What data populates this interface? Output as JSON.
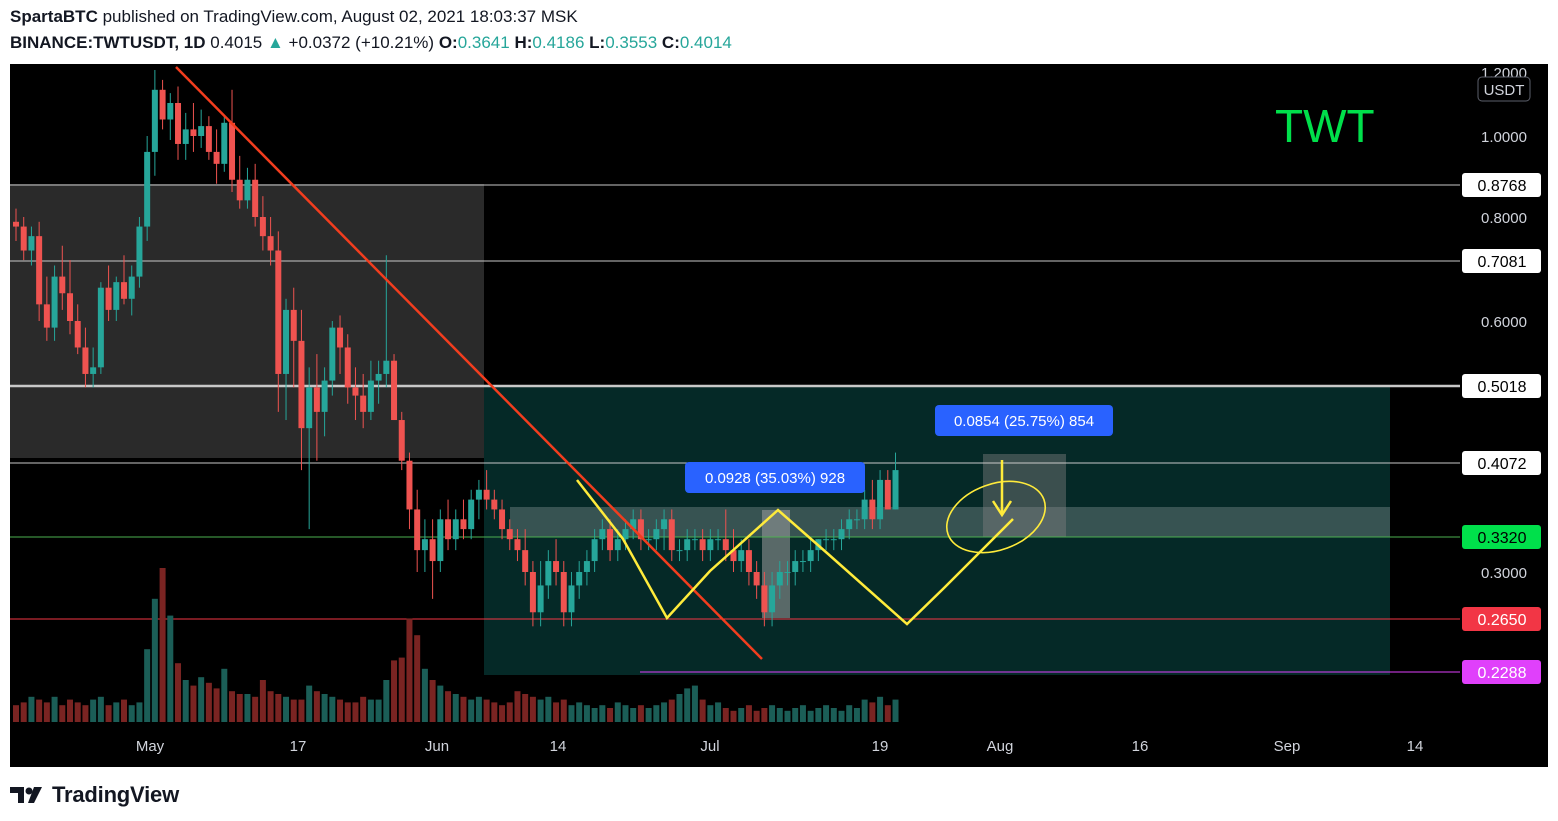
{
  "header": {
    "publisher": "SpartaBTC",
    "published_text": "published on TradingView.com, August 02, 2021 18:03:37 MSK",
    "symbol": "BINANCE:TWTUSDT, 1D",
    "last": "0.4015",
    "change": "+0.0372 (+10.21%)",
    "o_label": "O:",
    "o_value": "0.3641",
    "h_label": "H:",
    "h_value": "0.4186",
    "l_label": "L:",
    "l_value": "0.3553",
    "c_label": "C:",
    "c_value": "0.4014"
  },
  "footer": {
    "brand": "TradingView"
  },
  "colors": {
    "up": "#26a69a",
    "down": "#ef5350",
    "trendline": "#f23d1e",
    "pattern": "#ffeb3b",
    "support_green": "#4caf50",
    "resistance_red": "#f23645",
    "magenta": "#e040fb",
    "measure_box": "#2962ff",
    "title_green": "#00e04b"
  },
  "chart_data": {
    "type": "candlestick",
    "title": "TWT",
    "currency_label": "USDT",
    "y_ticks": [
      "1.2000",
      "1.0000",
      "0.8000",
      "0.6000",
      "0.3000"
    ],
    "x_ticks": [
      "May",
      "17",
      "Jun",
      "14",
      "Jul",
      "19",
      "Aug",
      "16",
      "Sep",
      "14"
    ],
    "price_levels": [
      {
        "value": "0.8768",
        "style": "white"
      },
      {
        "value": "0.7081",
        "style": "white"
      },
      {
        "value": "0.5018",
        "style": "white"
      },
      {
        "value": "0.4072",
        "style": "white"
      },
      {
        "value": "0.3320",
        "style": "green"
      },
      {
        "value": "0.2650",
        "style": "red"
      },
      {
        "value": "0.2288",
        "style": "magenta"
      }
    ],
    "measurements": [
      {
        "label": "0.0928 (35.03%) 928"
      },
      {
        "label": "0.0854 (25.75%) 854"
      }
    ],
    "candles": [
      [
        0.79,
        0.82,
        0.75,
        0.78
      ],
      [
        0.78,
        0.8,
        0.71,
        0.73
      ],
      [
        0.73,
        0.78,
        0.7,
        0.76
      ],
      [
        0.76,
        0.79,
        0.6,
        0.63
      ],
      [
        0.63,
        0.68,
        0.57,
        0.59
      ],
      [
        0.59,
        0.7,
        0.57,
        0.68
      ],
      [
        0.68,
        0.74,
        0.62,
        0.65
      ],
      [
        0.65,
        0.71,
        0.58,
        0.6
      ],
      [
        0.6,
        0.63,
        0.55,
        0.56
      ],
      [
        0.56,
        0.59,
        0.5,
        0.52
      ],
      [
        0.52,
        0.56,
        0.5,
        0.53
      ],
      [
        0.53,
        0.67,
        0.52,
        0.66
      ],
      [
        0.66,
        0.7,
        0.6,
        0.62
      ],
      [
        0.62,
        0.68,
        0.6,
        0.67
      ],
      [
        0.67,
        0.72,
        0.63,
        0.64
      ],
      [
        0.64,
        0.7,
        0.61,
        0.68
      ],
      [
        0.68,
        0.8,
        0.66,
        0.78
      ],
      [
        0.78,
        1.0,
        0.75,
        0.96
      ],
      [
        0.96,
        1.2,
        0.9,
        1.14
      ],
      [
        1.14,
        1.17,
        1.02,
        1.05
      ],
      [
        1.05,
        1.13,
        0.99,
        1.1
      ],
      [
        1.1,
        1.15,
        0.94,
        0.98
      ],
      [
        0.98,
        1.07,
        0.94,
        1.02
      ],
      [
        1.02,
        1.1,
        0.96,
        1.0
      ],
      [
        1.0,
        1.08,
        0.97,
        1.03
      ],
      [
        1.03,
        1.06,
        0.94,
        0.96
      ],
      [
        0.96,
        1.02,
        0.88,
        0.93
      ],
      [
        0.93,
        1.06,
        0.91,
        1.04
      ],
      [
        1.04,
        1.14,
        0.86,
        0.89
      ],
      [
        0.89,
        0.95,
        0.82,
        0.84
      ],
      [
        0.84,
        0.92,
        0.82,
        0.89
      ],
      [
        0.89,
        0.93,
        0.78,
        0.8
      ],
      [
        0.8,
        0.85,
        0.73,
        0.76
      ],
      [
        0.76,
        0.8,
        0.7,
        0.73
      ],
      [
        0.73,
        0.77,
        0.47,
        0.52
      ],
      [
        0.52,
        0.64,
        0.46,
        0.62
      ],
      [
        0.62,
        0.66,
        0.5,
        0.57
      ],
      [
        0.57,
        0.62,
        0.4,
        0.45
      ],
      [
        0.45,
        0.53,
        0.34,
        0.5
      ],
      [
        0.5,
        0.55,
        0.41,
        0.47
      ],
      [
        0.47,
        0.53,
        0.44,
        0.51
      ],
      [
        0.51,
        0.6,
        0.49,
        0.59
      ],
      [
        0.59,
        0.61,
        0.52,
        0.56
      ],
      [
        0.56,
        0.58,
        0.48,
        0.5
      ],
      [
        0.5,
        0.53,
        0.46,
        0.49
      ],
      [
        0.49,
        0.52,
        0.45,
        0.47
      ],
      [
        0.47,
        0.54,
        0.46,
        0.51
      ],
      [
        0.51,
        0.54,
        0.48,
        0.52
      ],
      [
        0.52,
        0.72,
        0.5,
        0.54
      ],
      [
        0.54,
        0.55,
        0.46,
        0.46
      ],
      [
        0.46,
        0.47,
        0.4,
        0.41
      ],
      [
        0.41,
        0.42,
        0.34,
        0.36
      ],
      [
        0.36,
        0.38,
        0.3,
        0.32
      ],
      [
        0.32,
        0.35,
        0.3,
        0.33
      ],
      [
        0.33,
        0.35,
        0.28,
        0.31
      ],
      [
        0.31,
        0.36,
        0.3,
        0.35
      ],
      [
        0.35,
        0.37,
        0.32,
        0.33
      ],
      [
        0.33,
        0.36,
        0.32,
        0.35
      ],
      [
        0.35,
        0.37,
        0.33,
        0.34
      ],
      [
        0.34,
        0.38,
        0.33,
        0.37
      ],
      [
        0.37,
        0.39,
        0.35,
        0.38
      ],
      [
        0.38,
        0.4,
        0.36,
        0.37
      ],
      [
        0.37,
        0.38,
        0.35,
        0.36
      ],
      [
        0.36,
        0.37,
        0.33,
        0.34
      ],
      [
        0.34,
        0.35,
        0.32,
        0.33
      ],
      [
        0.33,
        0.34,
        0.31,
        0.32
      ],
      [
        0.32,
        0.34,
        0.29,
        0.3
      ],
      [
        0.3,
        0.31,
        0.26,
        0.27
      ],
      [
        0.27,
        0.31,
        0.26,
        0.29
      ],
      [
        0.29,
        0.32,
        0.28,
        0.31
      ],
      [
        0.31,
        0.33,
        0.29,
        0.3
      ],
      [
        0.3,
        0.31,
        0.26,
        0.27
      ],
      [
        0.27,
        0.3,
        0.26,
        0.29
      ],
      [
        0.29,
        0.31,
        0.28,
        0.3
      ],
      [
        0.3,
        0.32,
        0.29,
        0.31
      ],
      [
        0.31,
        0.34,
        0.3,
        0.33
      ],
      [
        0.33,
        0.35,
        0.32,
        0.34
      ],
      [
        0.34,
        0.35,
        0.31,
        0.32
      ],
      [
        0.32,
        0.34,
        0.31,
        0.33
      ],
      [
        0.33,
        0.35,
        0.32,
        0.34
      ],
      [
        0.34,
        0.36,
        0.33,
        0.35
      ],
      [
        0.35,
        0.36,
        0.32,
        0.33
      ],
      [
        0.33,
        0.34,
        0.32,
        0.33
      ],
      [
        0.33,
        0.35,
        0.32,
        0.34
      ],
      [
        0.34,
        0.36,
        0.32,
        0.35
      ],
      [
        0.35,
        0.36,
        0.31,
        0.32
      ],
      [
        0.32,
        0.33,
        0.31,
        0.32
      ],
      [
        0.32,
        0.34,
        0.31,
        0.33
      ],
      [
        0.33,
        0.34,
        0.32,
        0.33
      ],
      [
        0.33,
        0.34,
        0.31,
        0.32
      ],
      [
        0.32,
        0.34,
        0.31,
        0.33
      ],
      [
        0.33,
        0.34,
        0.32,
        0.33
      ],
      [
        0.33,
        0.36,
        0.31,
        0.32
      ],
      [
        0.32,
        0.34,
        0.3,
        0.31
      ],
      [
        0.31,
        0.33,
        0.3,
        0.32
      ],
      [
        0.32,
        0.33,
        0.29,
        0.3
      ],
      [
        0.3,
        0.31,
        0.28,
        0.29
      ],
      [
        0.29,
        0.3,
        0.26,
        0.27
      ],
      [
        0.27,
        0.3,
        0.26,
        0.29
      ],
      [
        0.29,
        0.31,
        0.28,
        0.3
      ],
      [
        0.3,
        0.31,
        0.29,
        0.3
      ],
      [
        0.3,
        0.32,
        0.29,
        0.31
      ],
      [
        0.31,
        0.32,
        0.3,
        0.31
      ],
      [
        0.31,
        0.33,
        0.3,
        0.32
      ],
      [
        0.32,
        0.33,
        0.31,
        0.33
      ],
      [
        0.33,
        0.34,
        0.32,
        0.33
      ],
      [
        0.33,
        0.34,
        0.32,
        0.33
      ],
      [
        0.33,
        0.35,
        0.32,
        0.34
      ],
      [
        0.34,
        0.36,
        0.33,
        0.35
      ],
      [
        0.35,
        0.36,
        0.34,
        0.35
      ],
      [
        0.35,
        0.38,
        0.34,
        0.37
      ],
      [
        0.37,
        0.39,
        0.34,
        0.35
      ],
      [
        0.35,
        0.4,
        0.34,
        0.39
      ],
      [
        0.39,
        0.4,
        0.36,
        0.36
      ],
      [
        0.36,
        0.42,
        0.36,
        0.4
      ]
    ],
    "volumes": [
      0.6,
      0.7,
      0.9,
      0.8,
      0.7,
      0.9,
      0.6,
      0.8,
      0.7,
      0.6,
      0.8,
      0.9,
      0.6,
      0.7,
      0.8,
      0.6,
      0.7,
      2.6,
      4.4,
      5.5,
      3.8,
      2.1,
      1.5,
      1.3,
      1.6,
      1.4,
      1.2,
      1.9,
      1.1,
      1.0,
      1.0,
      0.9,
      1.5,
      1.1,
      1.0,
      0.9,
      0.8,
      0.8,
      1.3,
      1.1,
      1.0,
      0.9,
      0.8,
      0.7,
      0.7,
      0.9,
      0.8,
      0.8,
      1.5,
      2.2,
      2.3,
      3.7,
      3.1,
      1.9,
      1.5,
      1.3,
      1.1,
      1.0,
      0.9,
      0.8,
      0.9,
      0.8,
      0.7,
      0.6,
      0.7,
      1.1,
      1.0,
      0.9,
      0.8,
      0.9,
      0.7,
      0.8,
      0.6,
      0.7,
      0.6,
      0.5,
      0.6,
      0.5,
      0.7,
      0.6,
      0.5,
      0.6,
      0.5,
      0.6,
      0.7,
      0.8,
      1.0,
      1.2,
      1.3,
      0.8,
      0.6,
      0.7,
      0.5,
      0.4,
      0.5,
      0.6,
      0.4,
      0.5,
      0.6,
      0.5,
      0.4,
      0.5,
      0.6,
      0.4,
      0.5,
      0.6,
      0.5,
      0.4,
      0.6,
      0.5,
      0.8,
      0.7,
      0.9,
      0.6,
      0.8
    ]
  }
}
